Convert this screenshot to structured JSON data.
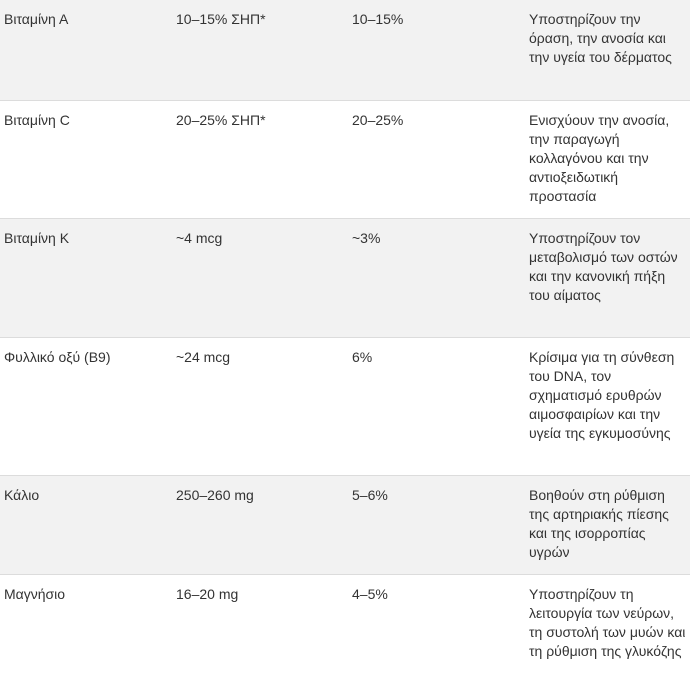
{
  "table": {
    "rows": [
      [
        "Βιταμίνη Α",
        "10–15% ΣΗΠ*",
        "10–15%",
        "Υποστηρίζουν την όραση, την ανοσία και την υγεία του δέρματος"
      ],
      [
        "Βιταμίνη C",
        "20–25% ΣΗΠ*",
        "20–25%",
        "Ενισχύουν την ανοσία, την παραγωγή κολλαγόνου και την αντιοξειδωτική προστασία"
      ],
      [
        "Βιταμίνη K",
        "~4 mcg",
        "~3%",
        "Υποστηρίζουν τον μεταβολισμό των οστών και την κανονική πήξη του αίματος"
      ],
      [
        "Φυλλικό οξύ (B9)",
        "~24 mcg",
        "6%",
        "Κρίσιμα για τη σύνθεση του DNA, τον σχηματισμό ερυθρών αιμοσφαιρίων και την υγεία της εγκυμοσύνης"
      ],
      [
        "Κάλιο",
        "250–260 mg",
        "5–6%",
        "Βοηθούν στη ρύθμιση της αρτηριακής πίεσης και της ισορροπίας υγρών"
      ],
      [
        "Μαγνήσιο",
        "16–20 mg",
        "4–5%",
        "Υποστηρίζουν τη λειτουργία των νεύρων, τη συστολή των μυών και τη ρύθμιση της γλυκόζης"
      ]
    ]
  }
}
